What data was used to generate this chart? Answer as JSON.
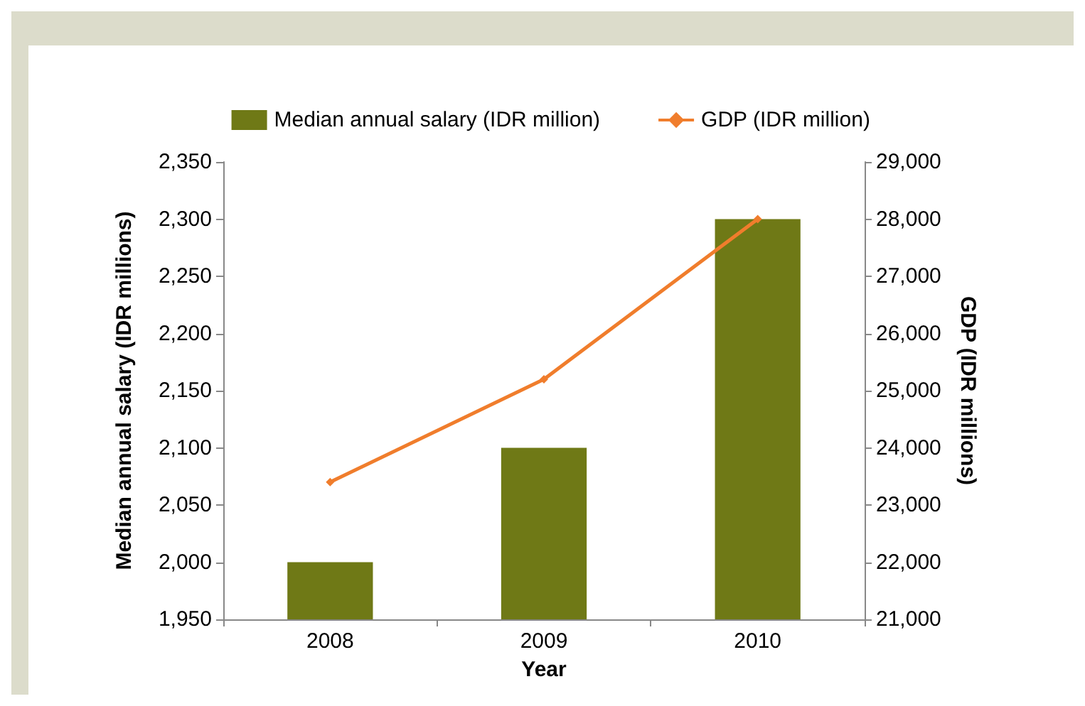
{
  "chart_data": {
    "type": "bar",
    "xlabel": "Year",
    "ylabel": "Median annual salary (IDR millions)",
    "y2label": "GDP (IDR millions)",
    "categories": [
      "2008",
      "2009",
      "2010"
    ],
    "series": [
      {
        "name": "Median annual salary (IDR million)",
        "color": "#6f7916",
        "values": [
          2000,
          2100,
          2300
        ]
      },
      {
        "name": "GDP (IDR million)",
        "type": "line",
        "axis": "y2",
        "color": "#f07d2c",
        "marker": "diamond",
        "values": [
          23400,
          25200,
          28000
        ]
      }
    ],
    "ylim": [
      1950,
      2350
    ],
    "yticks": [
      {
        "value": 1950,
        "label": "1,950"
      },
      {
        "value": 2000,
        "label": "2,000"
      },
      {
        "value": 2050,
        "label": "2,050"
      },
      {
        "value": 2100,
        "label": "2,100"
      },
      {
        "value": 2150,
        "label": "2,150"
      },
      {
        "value": 2200,
        "label": "2,200"
      },
      {
        "value": 2250,
        "label": "2,250"
      },
      {
        "value": 2300,
        "label": "2,300"
      },
      {
        "value": 2350,
        "label": "2,350"
      }
    ],
    "y2lim": [
      21000,
      29000
    ],
    "y2ticks": [
      {
        "value": 21000,
        "label": "21,000"
      },
      {
        "value": 22000,
        "label": "22,000"
      },
      {
        "value": 23000,
        "label": "23,000"
      },
      {
        "value": 24000,
        "label": "24,000"
      },
      {
        "value": 25000,
        "label": "25,000"
      },
      {
        "value": 26000,
        "label": "26,000"
      },
      {
        "value": 27000,
        "label": "27,000"
      },
      {
        "value": 28000,
        "label": "28,000"
      },
      {
        "value": 29000,
        "label": "29,000"
      }
    ],
    "legend": "top",
    "grid": false
  }
}
